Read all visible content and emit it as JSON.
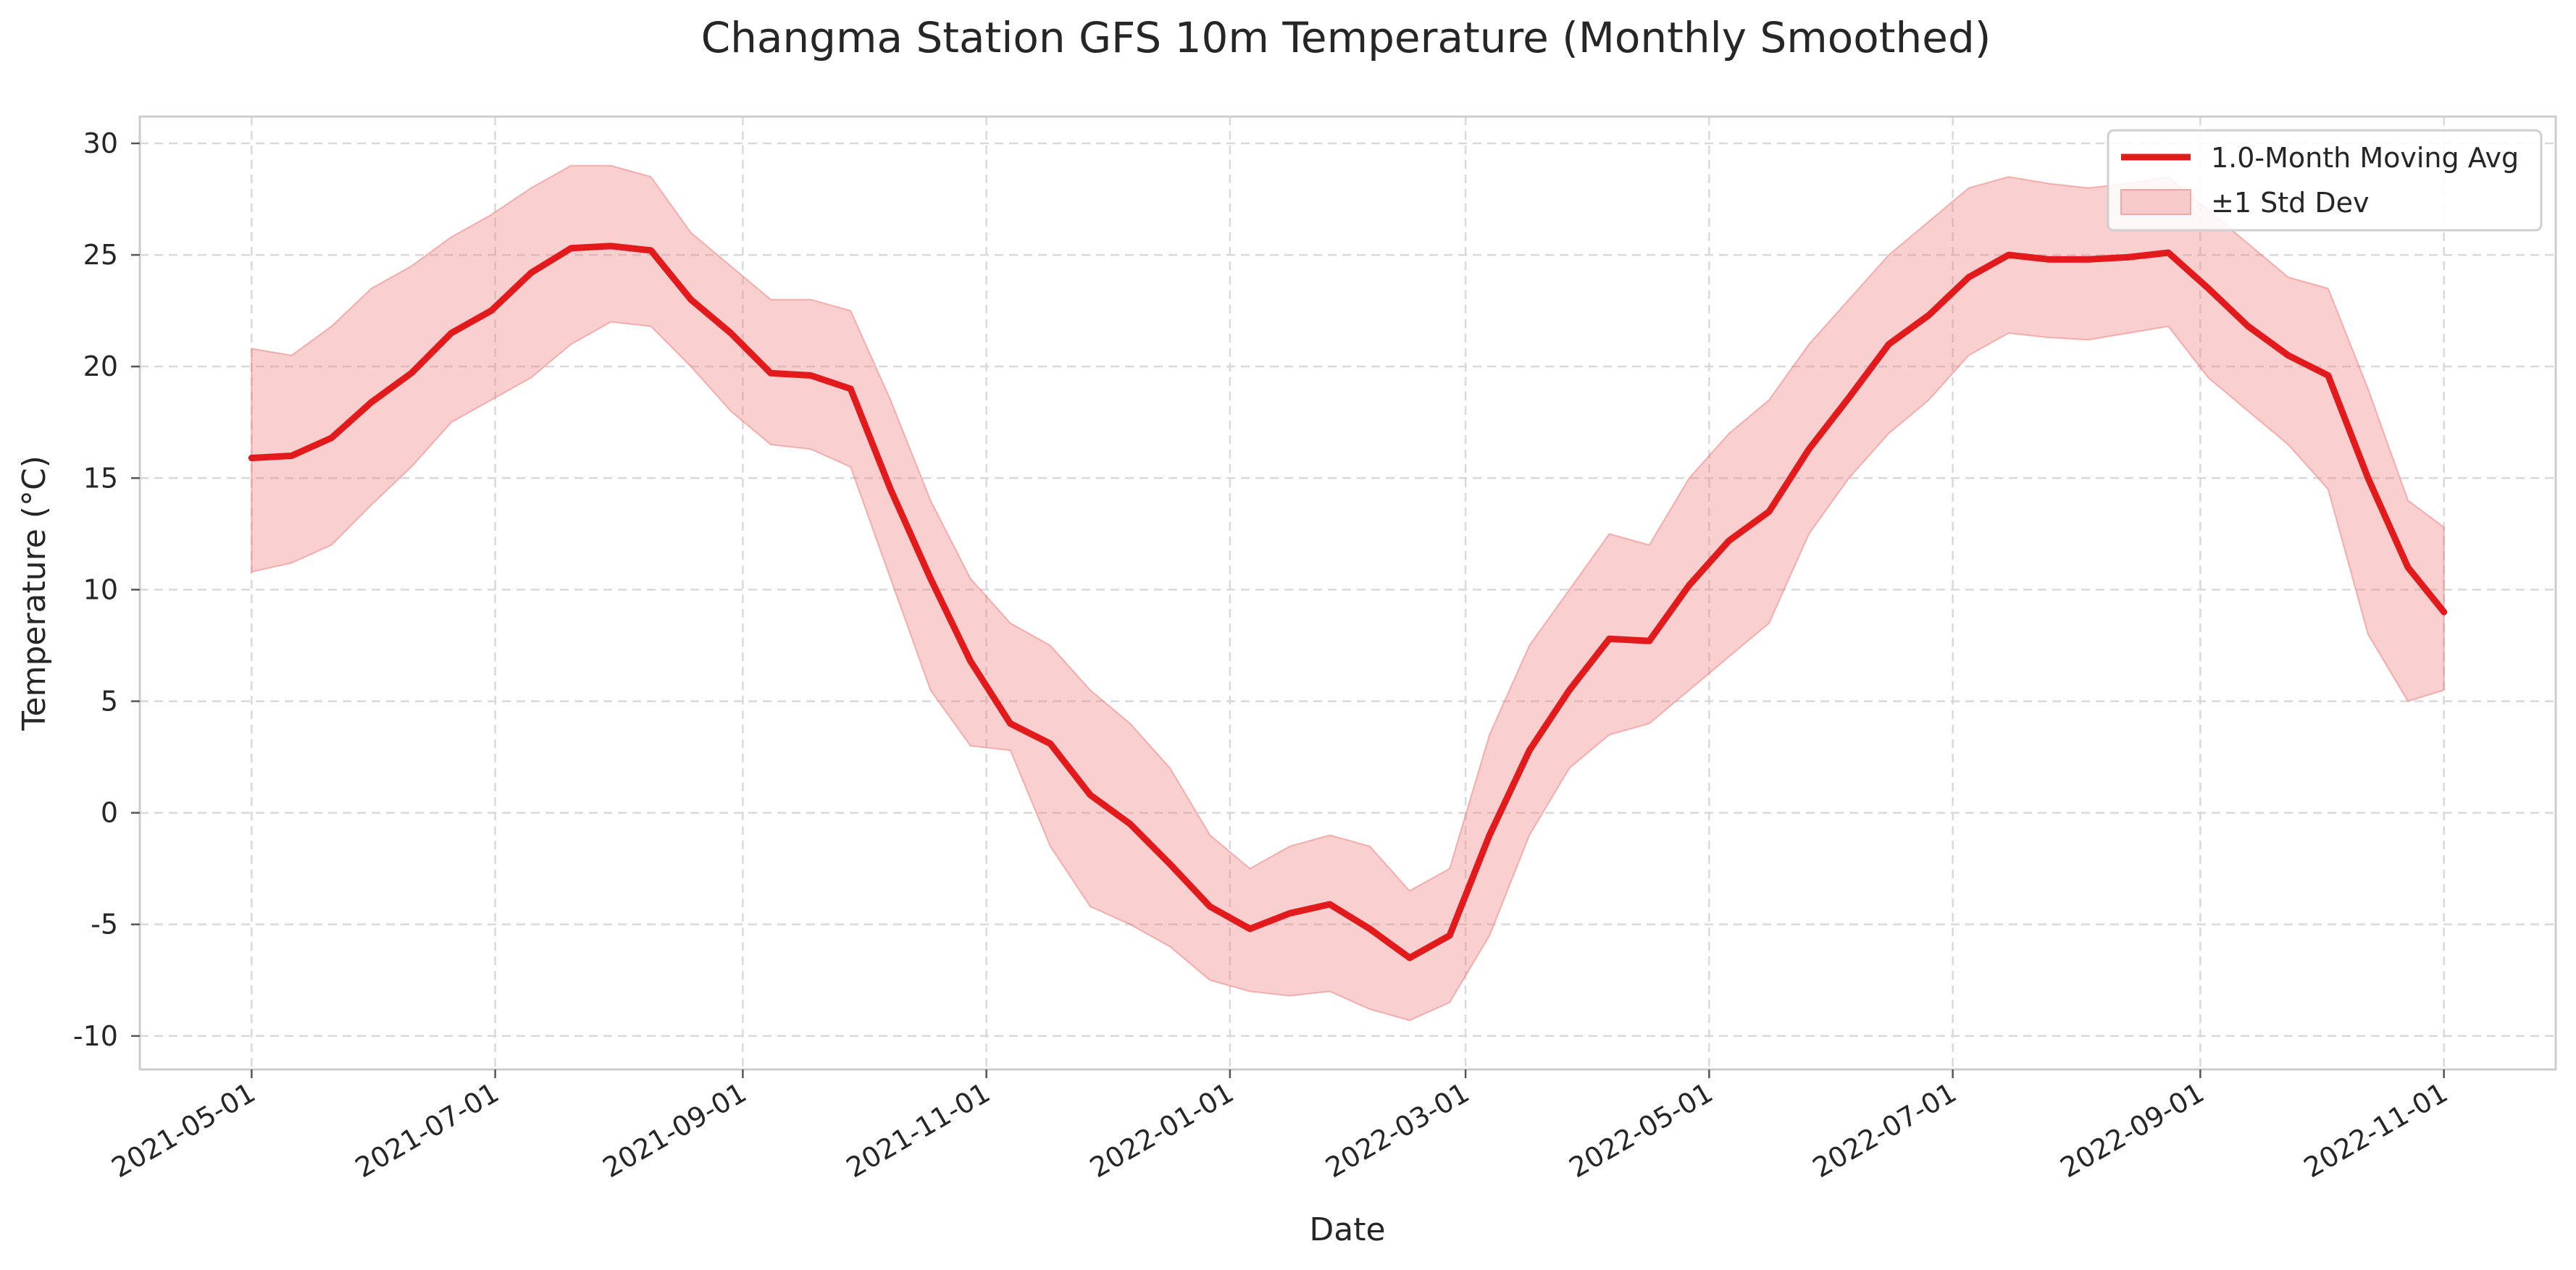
{
  "chart_data": {
    "type": "line",
    "title": "Changma Station GFS 10m Temperature (Monthly Smoothed)",
    "xlabel": "Date",
    "ylabel": "Temperature (°C)",
    "xlim": [
      "2021-04-03",
      "2022-11-29"
    ],
    "ylim": [
      -11.5,
      31.2
    ],
    "x_ticks": [
      "2021-05-01",
      "2021-07-01",
      "2021-09-01",
      "2021-11-01",
      "2022-01-01",
      "2022-03-01",
      "2022-05-01",
      "2022-07-01",
      "2022-09-01",
      "2022-11-01"
    ],
    "y_ticks": [
      -10,
      -5,
      0,
      5,
      10,
      15,
      20,
      25,
      30
    ],
    "y_tick_labels": [
      "-10",
      "-5",
      "0",
      "5",
      "10",
      "15",
      "20",
      "25",
      "30"
    ],
    "grid": true,
    "legend": {
      "position": "upper-right",
      "entries": [
        "1.0-Month Moving Avg",
        "±1 Std Dev"
      ]
    },
    "colors": {
      "line": "#e31a1c",
      "band": "#f08080"
    },
    "series": [
      {
        "name": "1.0-Month Moving Avg",
        "x": [
          "2021-05-01",
          "2021-05-11",
          "2021-05-21",
          "2021-05-31",
          "2021-06-10",
          "2021-06-20",
          "2021-06-30",
          "2021-07-10",
          "2021-07-20",
          "2021-07-30",
          "2021-08-09",
          "2021-08-19",
          "2021-08-29",
          "2021-09-08",
          "2021-09-18",
          "2021-09-28",
          "2021-10-08",
          "2021-10-18",
          "2021-10-28",
          "2021-11-07",
          "2021-11-17",
          "2021-11-27",
          "2021-12-07",
          "2021-12-17",
          "2021-12-27",
          "2022-01-06",
          "2022-01-16",
          "2022-01-26",
          "2022-02-05",
          "2022-02-15",
          "2022-02-25",
          "2022-03-07",
          "2022-03-17",
          "2022-03-27",
          "2022-04-06",
          "2022-04-16",
          "2022-04-26",
          "2022-05-06",
          "2022-05-16",
          "2022-05-26",
          "2022-06-05",
          "2022-06-15",
          "2022-06-25",
          "2022-07-05",
          "2022-07-15",
          "2022-07-25",
          "2022-08-04",
          "2022-08-14",
          "2022-08-24",
          "2022-09-03",
          "2022-09-13",
          "2022-09-23",
          "2022-10-03",
          "2022-10-13",
          "2022-10-23",
          "2022-11-01"
        ],
        "y": [
          15.9,
          16.0,
          16.8,
          18.4,
          19.7,
          21.5,
          22.5,
          24.2,
          25.3,
          25.4,
          25.2,
          23.0,
          21.5,
          19.7,
          19.6,
          19.0,
          14.5,
          10.5,
          6.8,
          4.0,
          3.1,
          0.8,
          -0.5,
          -2.3,
          -4.2,
          -5.2,
          -4.5,
          -4.1,
          -5.2,
          -6.5,
          -5.5,
          -1.0,
          2.8,
          5.5,
          7.8,
          7.7,
          10.2,
          12.2,
          13.5,
          16.3,
          18.6,
          21.0,
          22.3,
          24.0,
          25.0,
          24.8,
          24.8,
          24.9,
          25.1,
          23.5,
          21.8,
          20.5,
          19.6,
          15.0,
          11.0,
          9.0
        ],
        "band_lower": [
          10.8,
          11.2,
          12.0,
          13.8,
          15.5,
          17.5,
          18.5,
          19.5,
          21.0,
          22.0,
          21.8,
          20.0,
          18.0,
          16.5,
          16.3,
          15.5,
          10.5,
          5.5,
          3.0,
          2.8,
          -1.5,
          -4.2,
          -5.0,
          -6.0,
          -7.5,
          -8.0,
          -8.2,
          -8.0,
          -8.8,
          -9.3,
          -8.5,
          -5.5,
          -1.0,
          2.0,
          3.5,
          4.0,
          5.5,
          7.0,
          8.5,
          12.5,
          15.0,
          17.0,
          18.5,
          20.5,
          21.5,
          21.3,
          21.2,
          21.5,
          21.8,
          19.5,
          18.0,
          16.5,
          14.5,
          8.0,
          5.0,
          5.5
        ],
        "band_upper": [
          20.8,
          20.5,
          21.8,
          23.5,
          24.5,
          25.8,
          26.8,
          28.0,
          29.0,
          29.0,
          28.5,
          26.0,
          24.5,
          23.0,
          23.0,
          22.5,
          18.5,
          14.0,
          10.5,
          8.5,
          7.5,
          5.5,
          4.0,
          2.0,
          -1.0,
          -2.5,
          -1.5,
          -1.0,
          -1.5,
          -3.5,
          -2.5,
          3.5,
          7.5,
          10.0,
          12.5,
          12.0,
          15.0,
          17.0,
          18.5,
          21.0,
          23.0,
          25.0,
          26.5,
          28.0,
          28.5,
          28.2,
          28.0,
          28.2,
          28.5,
          27.0,
          25.5,
          24.0,
          23.5,
          19.0,
          14.0,
          12.8
        ]
      }
    ]
  }
}
